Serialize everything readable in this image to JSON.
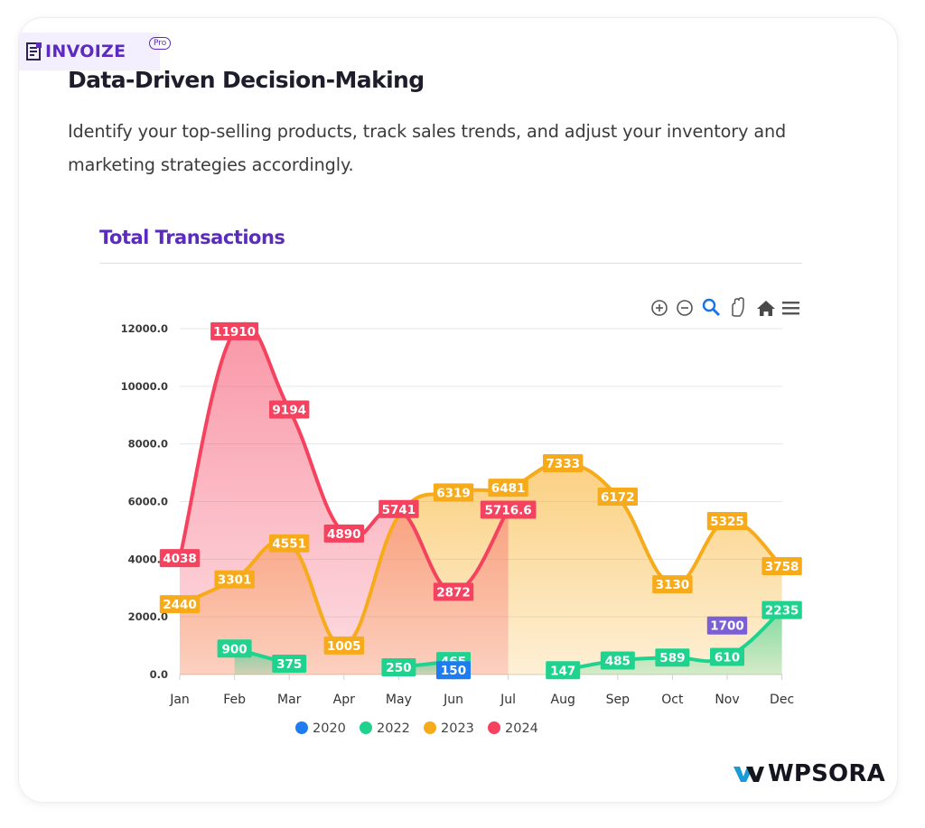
{
  "logo": {
    "name": "INVOIZE",
    "badge": "Pro"
  },
  "heading": "Data-Driven Decision-Making",
  "description": "Identify your top-selling products, track sales trends, and adjust your inventory and marketing strategies accordingly.",
  "toolbar": [
    "zoom-in-icon",
    "zoom-out-icon",
    "magnify-icon",
    "pan-hand-icon",
    "home-icon",
    "menu-icon"
  ],
  "brand": {
    "name": "WPSORA"
  },
  "chart_data": {
    "type": "area",
    "title": "Total Transactions",
    "categories": [
      "Jan",
      "Feb",
      "Mar",
      "Apr",
      "May",
      "Jun",
      "Jul",
      "Aug",
      "Sep",
      "Oct",
      "Nov",
      "Dec"
    ],
    "ylim": [
      0,
      12000
    ],
    "yticks": [
      "0.0",
      "2000.0",
      "4000.0",
      "6000.0",
      "8000.0",
      "10000.0",
      "12000.0"
    ],
    "grid": true,
    "legend": "bottom",
    "series": [
      {
        "name": "2020",
        "color": "#1f7cf0",
        "values": [
          null,
          null,
          null,
          null,
          null,
          150,
          null,
          null,
          null,
          null,
          1700,
          null
        ],
        "labels": [
          null,
          null,
          null,
          null,
          null,
          "150",
          null,
          null,
          null,
          null,
          "1700",
          null
        ]
      },
      {
        "name": "2022",
        "color": "#1fd38f",
        "values": [
          null,
          900,
          375,
          null,
          250,
          465,
          null,
          147,
          485,
          589,
          610,
          2235
        ],
        "labels": [
          null,
          "900",
          "375",
          null,
          "250",
          "465",
          null,
          "147",
          "485",
          "589",
          "610",
          "2235"
        ]
      },
      {
        "name": "2023",
        "color": "#f7aa1a",
        "values": [
          2440,
          3301,
          4551,
          1005,
          5500,
          6319,
          6481,
          7333,
          6172,
          3130,
          5325,
          3758
        ],
        "labels": [
          "2440",
          "3301",
          "4551",
          "1005",
          "",
          "6319",
          "6481",
          "7333",
          "6172",
          "3130",
          "5325",
          "3758"
        ]
      },
      {
        "name": "2024",
        "color": "#f4425f",
        "values": [
          4038,
          11910,
          9194,
          4890,
          5741,
          2872,
          5716.6,
          null,
          null,
          null,
          null,
          null
        ],
        "labels": [
          "4038",
          "11910",
          "9194",
          "4890",
          "5741",
          "2872",
          "5716.6",
          null,
          null,
          null,
          null,
          null
        ]
      }
    ]
  }
}
